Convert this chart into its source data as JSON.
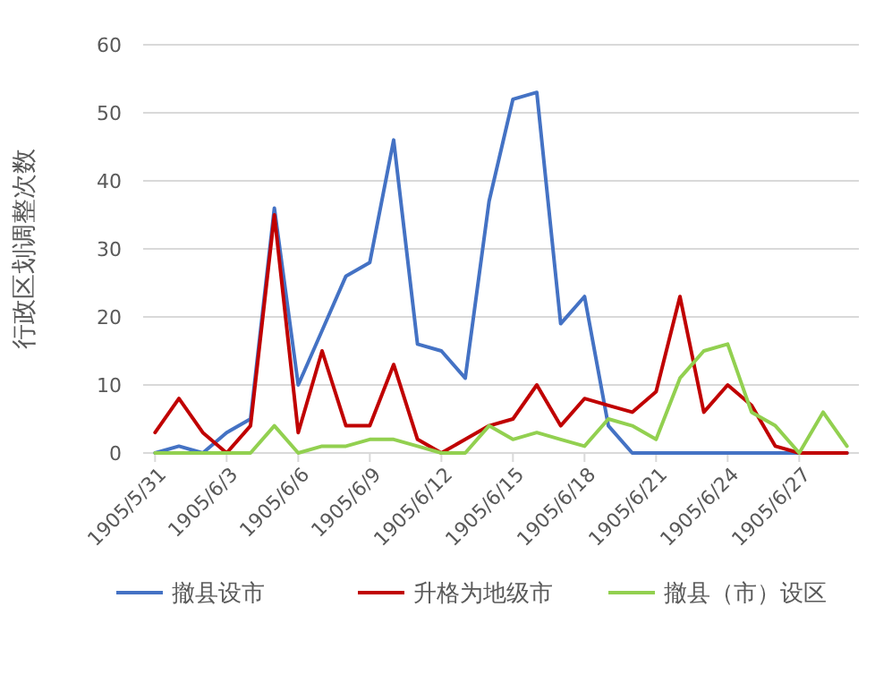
{
  "chart_data": {
    "type": "line",
    "ylabel": "行政区划调整次数",
    "categories": [
      "1905/5/31",
      null,
      null,
      "1905/6/3",
      null,
      null,
      "1905/6/6",
      null,
      null,
      "1905/6/9",
      null,
      null,
      "1905/6/12",
      null,
      null,
      "1905/6/15",
      null,
      null,
      "1905/6/18",
      null,
      null,
      "1905/6/21",
      null,
      null,
      "1905/6/24",
      null,
      null,
      "1905/6/27",
      null,
      null
    ],
    "series": [
      {
        "name": "撤县设市",
        "color": "#4472c4",
        "values": [
          0,
          1,
          0,
          3,
          5,
          36,
          10,
          18,
          26,
          28,
          46,
          16,
          15,
          11,
          37,
          52,
          53,
          19,
          23,
          4,
          0,
          0,
          0,
          0,
          0,
          0,
          0,
          0,
          0,
          0
        ]
      },
      {
        "name": "升格为地级市",
        "color": "#c00000",
        "values": [
          3,
          8,
          3,
          0,
          4,
          35,
          3,
          15,
          4,
          4,
          13,
          2,
          0,
          2,
          4,
          5,
          10,
          4,
          8,
          7,
          6,
          9,
          23,
          6,
          10,
          7,
          1,
          0,
          0,
          0
        ]
      },
      {
        "name": "撤县（市）设区",
        "color": "#92d050",
        "values": [
          0,
          0,
          0,
          0,
          0,
          4,
          0,
          1,
          1,
          2,
          2,
          1,
          0,
          0,
          4,
          2,
          3,
          2,
          1,
          5,
          4,
          2,
          11,
          15,
          16,
          6,
          4,
          0,
          6,
          1
        ]
      }
    ],
    "ylim": [
      0,
      60
    ],
    "yticks": [
      0,
      10,
      20,
      30,
      40,
      50,
      60
    ],
    "grid": "y",
    "legend": "bottom",
    "marker": "none",
    "line_style": "solid"
  }
}
